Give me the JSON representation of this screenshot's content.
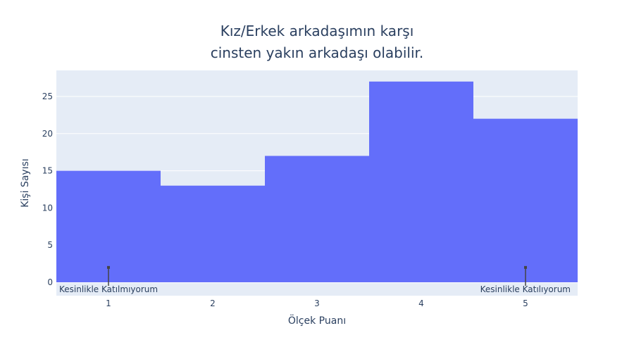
{
  "chart_data": {
    "type": "bar",
    "title_lines": [
      "Kız/Erkek arkadaşımın karşı",
      "cinsten yakın arkadaşı olabilir."
    ],
    "xlabel": "Ölçek Puanı",
    "ylabel": "Kişi Sayısı",
    "categories": [
      1,
      2,
      3,
      4,
      5
    ],
    "values": [
      15,
      13,
      17,
      27,
      22
    ],
    "xlim": [
      0.5,
      5.5
    ],
    "ylim": [
      -1.8,
      28.5
    ],
    "x_ticks": [
      1,
      2,
      3,
      4,
      5
    ],
    "y_ticks": [
      0,
      5,
      10,
      15,
      20,
      25
    ],
    "grid": true,
    "annotations": [
      {
        "x": 1,
        "y": 2,
        "text": "Kesinlikle Katılmıyorum",
        "align": "left"
      },
      {
        "x": 5,
        "y": 2,
        "text": "Kesinlikle Katılıyorum",
        "align": "right"
      }
    ],
    "colors": {
      "bar": "#636efa",
      "plot_bg": "#e5ecf6",
      "grid": "#ffffff",
      "text": "#2a3f5f",
      "annotation_line": "#444444"
    }
  }
}
